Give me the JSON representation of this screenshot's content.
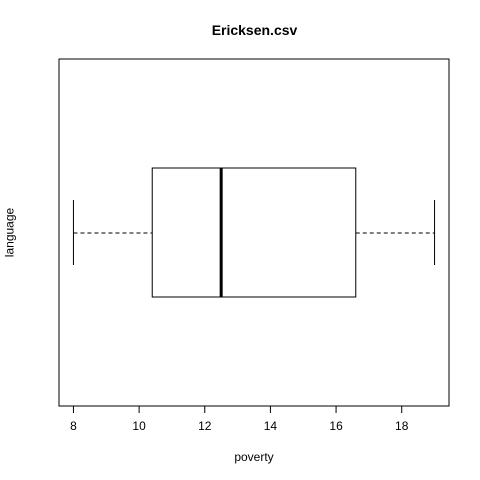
{
  "chart_data": {
    "type": "boxplot",
    "orientation": "horizontal",
    "title": "Ericksen.csv",
    "xlabel": "poverty",
    "ylabel": "language",
    "xlim": [
      7.56,
      19.44
    ],
    "xticks": [
      8,
      10,
      12,
      14,
      16,
      18
    ],
    "tick_labels": [
      "8",
      "10",
      "12",
      "14",
      "16",
      "18"
    ],
    "grid": false,
    "box": {
      "min": 8.0,
      "q1": 10.4,
      "median": 12.5,
      "q3": 16.6,
      "max": 19.0
    },
    "colors": {
      "box_fill": "#ffffff",
      "stroke": "#000000"
    }
  }
}
